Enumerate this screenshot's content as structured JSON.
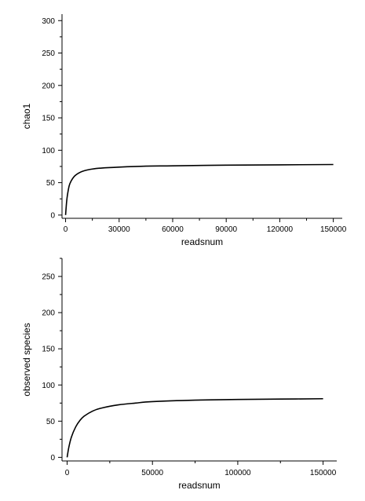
{
  "chart_data": [
    {
      "type": "line",
      "xlabel": "readsnum",
      "ylabel": "chao1",
      "xlim": [
        -2000,
        155000
      ],
      "ylim": [
        -5,
        310
      ],
      "x_ticks": [
        0,
        30000,
        60000,
        90000,
        120000,
        150000
      ],
      "x_tick_labels": [
        "0",
        "30000",
        "60000",
        "90000",
        "120000",
        "150000"
      ],
      "y_ticks": [
        0,
        50,
        100,
        150,
        200,
        250,
        300
      ],
      "y_tick_labels": [
        "0",
        "50",
        "100",
        "150",
        "200",
        "250",
        "300"
      ],
      "grid": false,
      "line_color": "#000000",
      "series": [
        {
          "x": [
            0,
            500,
            1000,
            2000,
            3000,
            5000,
            7500,
            10000,
            15000,
            20000,
            30000,
            45000,
            60000,
            90000,
            120000,
            150000
          ],
          "values": [
            0,
            18,
            30,
            45,
            52,
            60,
            65,
            68,
            71,
            72.5,
            74,
            75.5,
            76,
            77,
            77.5,
            78
          ]
        }
      ]
    },
    {
      "type": "line",
      "xlabel": "readsnum",
      "ylabel": "observed species",
      "xlim": [
        -3000,
        158000
      ],
      "ylim": [
        -5,
        275
      ],
      "x_ticks": [
        0,
        50000,
        100000,
        150000
      ],
      "x_tick_labels": [
        "0",
        "50000",
        "100000",
        "150000"
      ],
      "y_ticks": [
        0,
        50,
        100,
        150,
        200,
        250
      ],
      "y_tick_labels": [
        "0",
        "50",
        "100",
        "150",
        "200",
        "250"
      ],
      "grid": false,
      "line_color": "#000000",
      "series": [
        {
          "x": [
            0,
            1000,
            2500,
            5000,
            7500,
            10000,
            15000,
            20000,
            30000,
            40000,
            50000,
            75000,
            100000,
            125000,
            150000
          ],
          "values": [
            0,
            14,
            28,
            42,
            51,
            57,
            64,
            68,
            72.5,
            75,
            77,
            79,
            80,
            80.5,
            81
          ]
        }
      ]
    }
  ]
}
